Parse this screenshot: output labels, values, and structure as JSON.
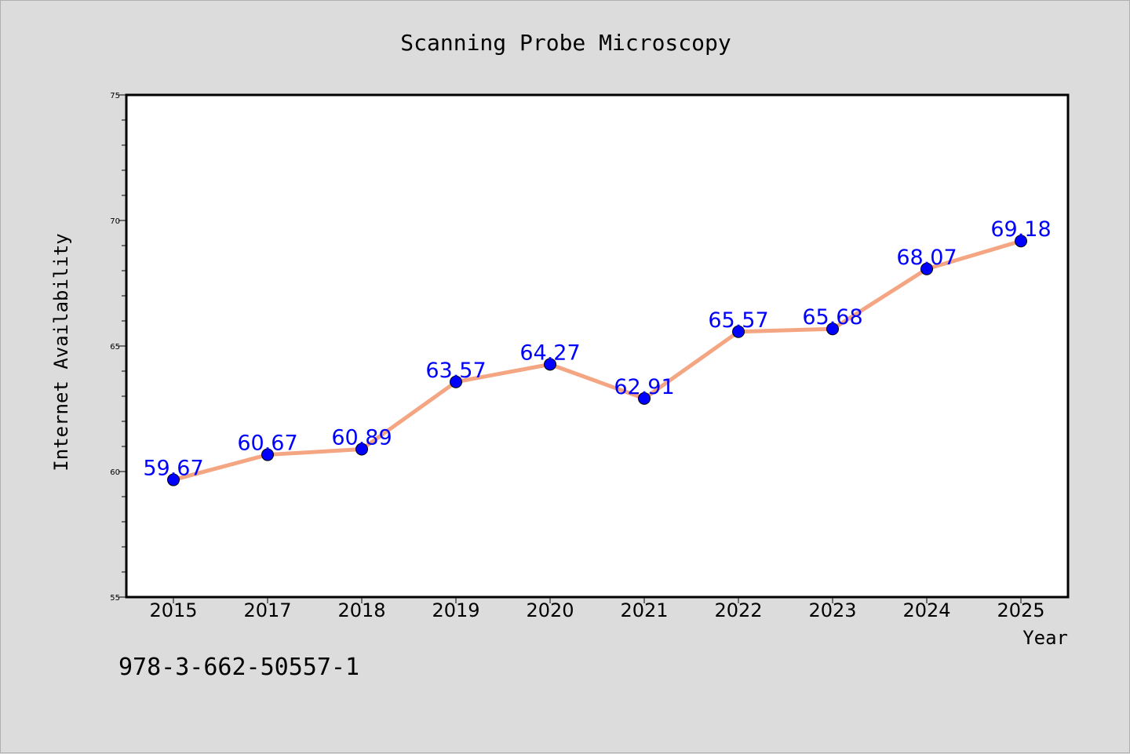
{
  "chart_data": {
    "type": "line",
    "title": "Scanning Probe Microscopy",
    "xlabel": "Year",
    "ylabel": "Internet Availability",
    "categories": [
      "2015",
      "2017",
      "2018",
      "2019",
      "2020",
      "2021",
      "2022",
      "2023",
      "2024",
      "2025"
    ],
    "series": [
      {
        "values": [
          59.67,
          60.67,
          60.89,
          63.57,
          64.27,
          62.91,
          65.57,
          65.68,
          68.07,
          69.18
        ],
        "data_labels": [
          "59.67",
          "60.67",
          "60.89",
          "63.57",
          "64.27",
          "62.91",
          "65.57",
          "65.68",
          "68.07",
          "69.18"
        ]
      }
    ],
    "ylim": [
      55,
      75
    ],
    "yticks": [
      "55",
      "60",
      "65",
      "70",
      "75"
    ],
    "y_minor_step": 1,
    "grid": false,
    "legend": "none",
    "colors": {
      "line": "#f4a582",
      "marker": "#0000ff",
      "data_label": "#0000ff",
      "plot_background": "#ffffff",
      "figure_background": "#dcdcdc"
    }
  },
  "footer_text": "978-3-662-50557-1"
}
